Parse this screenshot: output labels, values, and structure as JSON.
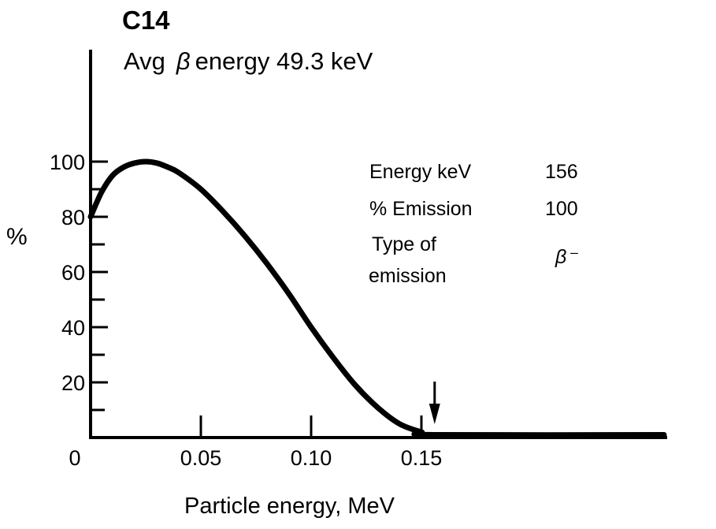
{
  "chart_data": {
    "type": "line",
    "title": "C14",
    "subtitle_prefix": "Avg",
    "subtitle_symbol": "β",
    "subtitle_suffix": "energy 49.3 keV",
    "xlabel": "Particle energy, MeV",
    "ylabel": "%",
    "xlim": [
      0,
      0.26
    ],
    "ylim": [
      0,
      100
    ],
    "x_ticks": [
      "0",
      "0.05",
      "0.10",
      "0.15"
    ],
    "x_tick_values": [
      0,
      0.05,
      0.1,
      0.15
    ],
    "y_ticks": [
      "20",
      "40",
      "60",
      "80",
      "100"
    ],
    "y_tick_values": [
      20,
      40,
      60,
      80,
      100
    ],
    "endpoint_marker": 0.156,
    "grid": false,
    "series": [
      {
        "x": [
          0,
          0.005,
          0.01,
          0.015,
          0.02,
          0.025,
          0.03,
          0.035,
          0.04,
          0.05,
          0.06,
          0.07,
          0.08,
          0.09,
          0.1,
          0.11,
          0.12,
          0.13,
          0.14,
          0.15,
          0.156,
          0.26
        ],
        "y": [
          80,
          89,
          95,
          98,
          99.5,
          100,
          99.5,
          98,
          96,
          90,
          82,
          73,
          63,
          52,
          40,
          29,
          19,
          11,
          5,
          2,
          1,
          1
        ]
      }
    ],
    "info_table": [
      {
        "label": "Energy keV",
        "value": "156"
      },
      {
        "label": "% Emission",
        "value": "100"
      },
      {
        "label": "Type of",
        "label2": "emission",
        "value": "β⁻"
      }
    ]
  }
}
